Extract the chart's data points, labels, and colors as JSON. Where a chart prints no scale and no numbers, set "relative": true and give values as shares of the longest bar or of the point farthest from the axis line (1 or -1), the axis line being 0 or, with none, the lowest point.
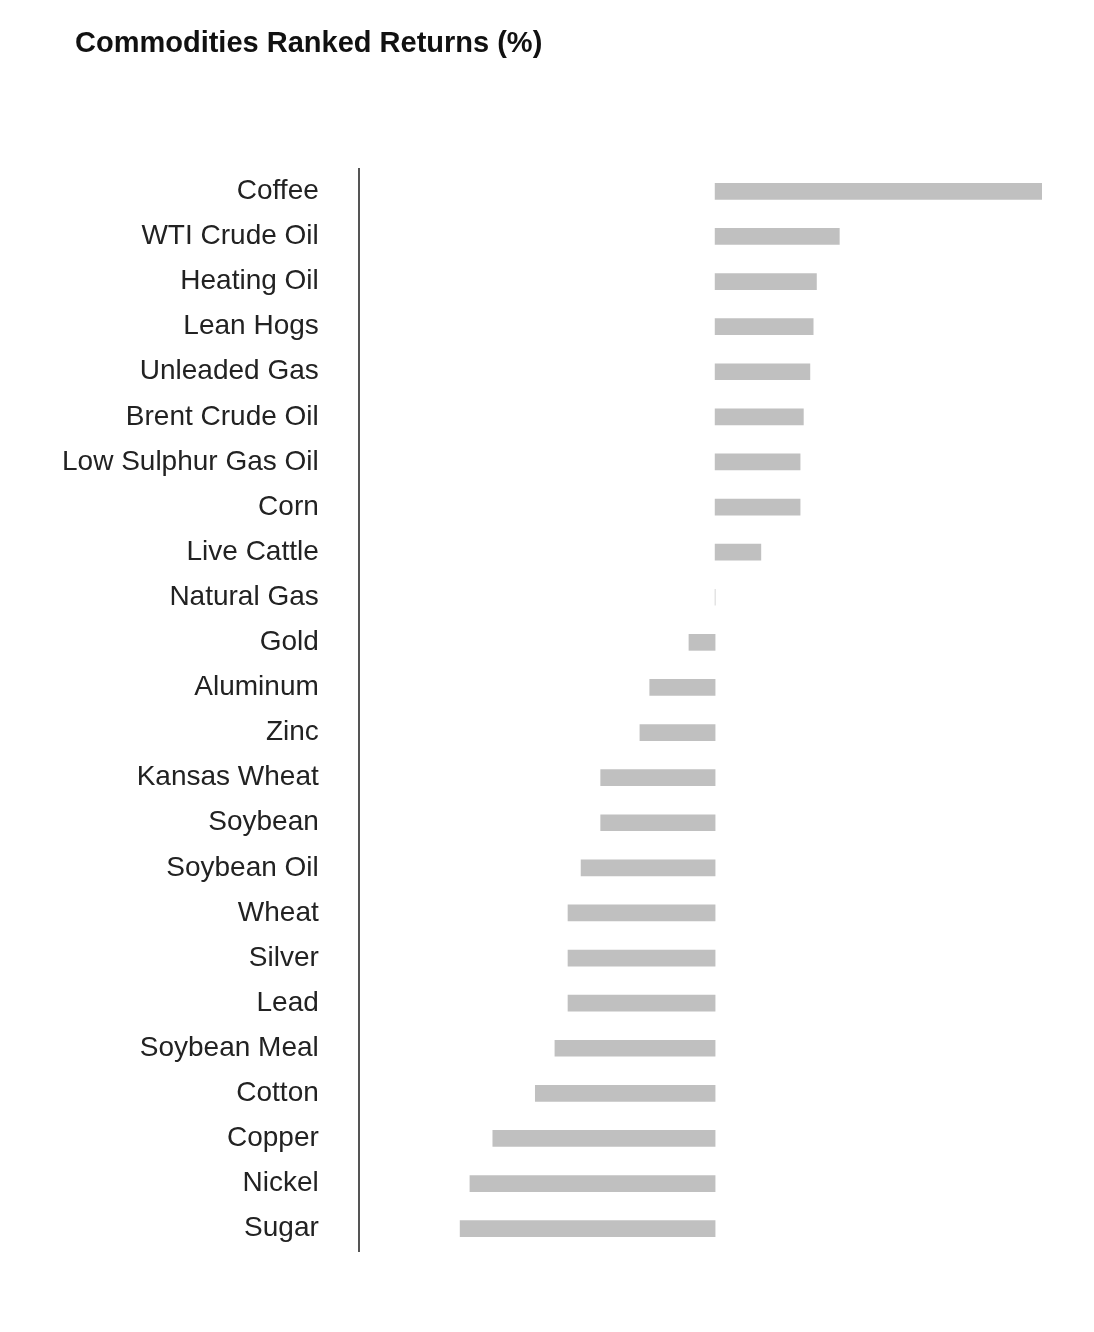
{
  "chart_data": {
    "type": "bar",
    "orientation": "horizontal",
    "relative": true,
    "title": "Commodities Ranked Returns (%)",
    "categories": [
      "Coffee",
      "WTI Crude Oil",
      "Heating Oil",
      "Lean Hogs",
      "Unleaded Gas",
      "Brent Crude Oil",
      "Low Sulphur Gas Oil",
      "Corn",
      "Live Cattle",
      "Natural Gas",
      "Gold",
      "Aluminum",
      "Zinc",
      "Kansas Wheat",
      "Soybean",
      "Soybean Oil",
      "Wheat",
      "Silver",
      "Lead",
      "Soybean Meal",
      "Cotton",
      "Copper",
      "Nickel",
      "Sugar"
    ],
    "values": [
      1.0,
      0.38,
      0.31,
      0.3,
      0.29,
      0.27,
      0.26,
      0.26,
      0.14,
      0,
      -0.08,
      -0.2,
      -0.23,
      -0.35,
      -0.35,
      -0.41,
      -0.45,
      -0.45,
      -0.45,
      -0.49,
      -0.55,
      -0.68,
      -0.75,
      -0.78
    ],
    "color": "#c0c0c0",
    "legend": false
  }
}
